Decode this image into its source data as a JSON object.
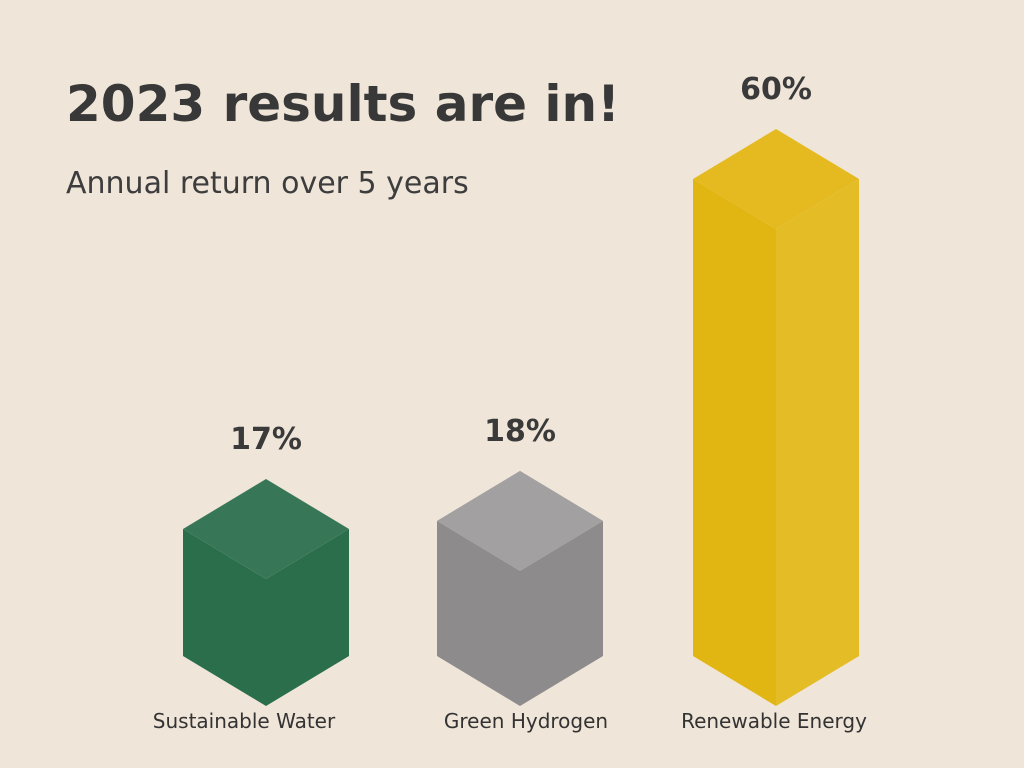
{
  "header": {
    "title": "2023 results are in!",
    "subtitle": "Annual return over 5 years"
  },
  "chart_data": {
    "type": "bar",
    "style": "3d-isometric",
    "title": "2023 results are in!",
    "subtitle": "Annual return over 5 years",
    "categories": [
      "Sustainable Water",
      "Green Hydrogen",
      "Renewable Energy"
    ],
    "values": [
      17,
      18,
      60
    ],
    "value_labels": [
      "17%",
      "18%",
      "60%"
    ],
    "colors": [
      "#2a6e4c",
      "#8d8b8b",
      "#e2b612"
    ],
    "xlabel": "",
    "ylabel": "",
    "ylim": [
      0,
      60
    ],
    "grid": false,
    "legend": "none"
  }
}
